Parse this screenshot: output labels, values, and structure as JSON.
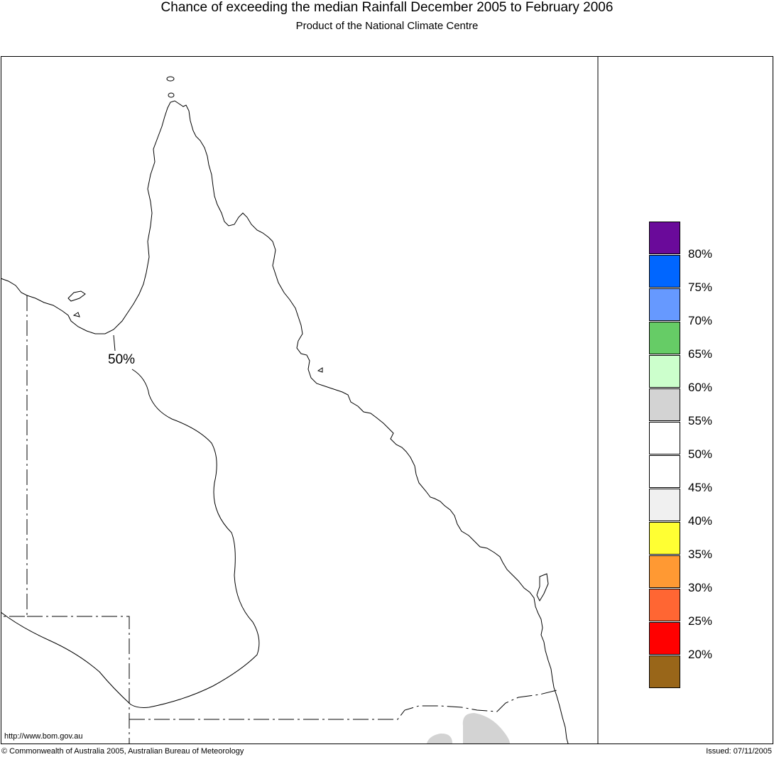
{
  "header": {
    "title": "Chance of exceeding the median Rainfall December 2005 to February 2006",
    "subtitle": "Product of the National Climate Centre"
  },
  "map": {
    "contour_label": "50%",
    "colors": {
      "coastline": "#000000",
      "contour": "#000000",
      "shaded_region": "#d3d3d3"
    },
    "region_shading": [
      {
        "region": "south-east Queensland",
        "category": "55%-60%",
        "color": "#d3d3d3"
      }
    ]
  },
  "legend": {
    "items": [
      {
        "color": "#6a0a9a",
        "label": "80%"
      },
      {
        "color": "#0066ff",
        "label": "75%"
      },
      {
        "color": "#6699ff",
        "label": "70%"
      },
      {
        "color": "#66cc66",
        "label": "65%"
      },
      {
        "color": "#ccffcc",
        "label": "60%"
      },
      {
        "color": "#d3d3d3",
        "label": "55%"
      },
      {
        "color": "#ffffff",
        "label": "50%"
      },
      {
        "color": "#ffffff",
        "label": "45%"
      },
      {
        "color": "#f0f0f0",
        "label": "40%"
      },
      {
        "color": "#ffff33",
        "label": "35%"
      },
      {
        "color": "#ff9933",
        "label": "30%"
      },
      {
        "color": "#ff6633",
        "label": "25%"
      },
      {
        "color": "#ff0000",
        "label": "20%"
      },
      {
        "color": "#996619",
        "label": ""
      }
    ]
  },
  "footer": {
    "url": "http://www.bom.gov.au",
    "copyright": "© Commonwealth of Australia 2005, Australian Bureau of Meteorology",
    "issued": "Issued: 07/11/2005"
  }
}
